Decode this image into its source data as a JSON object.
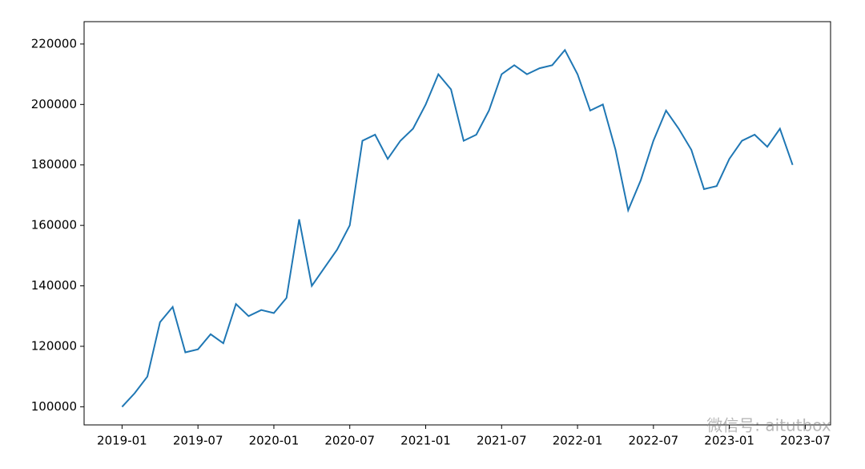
{
  "chart_data": {
    "type": "line",
    "x": [
      "2019-01",
      "2019-02",
      "2019-03",
      "2019-04",
      "2019-05",
      "2019-06",
      "2019-07",
      "2019-08",
      "2019-09",
      "2019-10",
      "2019-11",
      "2019-12",
      "2020-01",
      "2020-02",
      "2020-03",
      "2020-04",
      "2020-05",
      "2020-06",
      "2020-07",
      "2020-08",
      "2020-09",
      "2020-10",
      "2020-11",
      "2020-12",
      "2021-01",
      "2021-02",
      "2021-03",
      "2021-04",
      "2021-05",
      "2021-06",
      "2021-07",
      "2021-08",
      "2021-09",
      "2021-10",
      "2021-11",
      "2021-12",
      "2022-01",
      "2022-02",
      "2022-03",
      "2022-04",
      "2022-05",
      "2022-06",
      "2022-07",
      "2022-08",
      "2022-09",
      "2022-10",
      "2022-11",
      "2022-12",
      "2023-01",
      "2023-02",
      "2023-03",
      "2023-04",
      "2023-05",
      "2023-06"
    ],
    "series": [
      {
        "color": "#1f77b4",
        "values": [
          100000,
          104500,
          110000,
          128000,
          133000,
          118000,
          119000,
          124000,
          121000,
          134000,
          130000,
          132000,
          131000,
          136000,
          162000,
          140000,
          146000,
          152000,
          160000,
          188000,
          190000,
          182000,
          188000,
          192000,
          200000,
          210000,
          205000,
          188000,
          190000,
          198000,
          210000,
          213000,
          210000,
          212000,
          213000,
          218000,
          210000,
          198000,
          200000,
          185000,
          165000,
          175000,
          188000,
          198000,
          192000,
          185000,
          172000,
          173000,
          182000,
          188000,
          190000,
          186000,
          192000,
          180000
        ]
      }
    ],
    "xlim": [
      "2018-10",
      "2023-09"
    ],
    "xticks": [
      "2019-01",
      "2019-07",
      "2020-01",
      "2020-07",
      "2021-01",
      "2021-07",
      "2022-01",
      "2022-07",
      "2023-01",
      "2023-07"
    ],
    "ylim": [
      94000,
      227400
    ],
    "yticks": [
      100000,
      120000,
      140000,
      160000,
      180000,
      200000,
      220000
    ],
    "watermark": "微信号: aitutbox"
  }
}
